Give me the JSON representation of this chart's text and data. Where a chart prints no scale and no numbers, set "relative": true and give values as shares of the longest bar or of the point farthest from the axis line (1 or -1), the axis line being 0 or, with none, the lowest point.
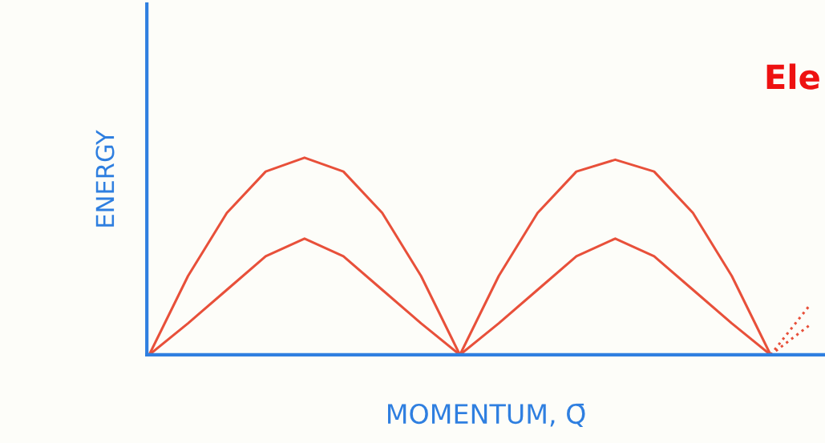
{
  "chart_data": {
    "type": "line",
    "relative": true,
    "xlabel": "MOMENTUM, Q̄",
    "ylabel": "ENERGY",
    "categories": [
      null,
      null,
      null,
      null,
      null,
      null,
      null,
      null,
      null,
      null,
      null,
      null,
      null,
      null,
      null,
      null,
      null,
      null
    ],
    "series": [
      {
        "color": "#e8503a",
        "line_style": "solid",
        "values": [
          0,
          0.4,
          0.72,
          0.93,
          1,
          0.93,
          0.72,
          0.4,
          0,
          0.4,
          0.72,
          0.93,
          0.99,
          0.93,
          0.72,
          0.4,
          0,
          null
        ]
      },
      {
        "color": "#e8503a",
        "line_style": "solid",
        "values": [
          0,
          0.16,
          0.33,
          0.5,
          0.59,
          0.5,
          0.33,
          0.16,
          0,
          0.16,
          0.33,
          0.5,
          0.59,
          0.5,
          0.33,
          0.16,
          0,
          null
        ]
      },
      {
        "color": "#e8503a",
        "line_style": "dotted",
        "values": [
          null,
          null,
          null,
          null,
          null,
          null,
          null,
          null,
          null,
          null,
          null,
          null,
          null,
          null,
          null,
          null,
          0,
          0.25
        ]
      },
      {
        "color": "#e8503a",
        "line_style": "dotted",
        "values": [
          null,
          null,
          null,
          null,
          null,
          null,
          null,
          null,
          null,
          null,
          null,
          null,
          null,
          null,
          null,
          null,
          0,
          0.15
        ]
      }
    ],
    "annotations": [
      "Ele"
    ]
  }
}
